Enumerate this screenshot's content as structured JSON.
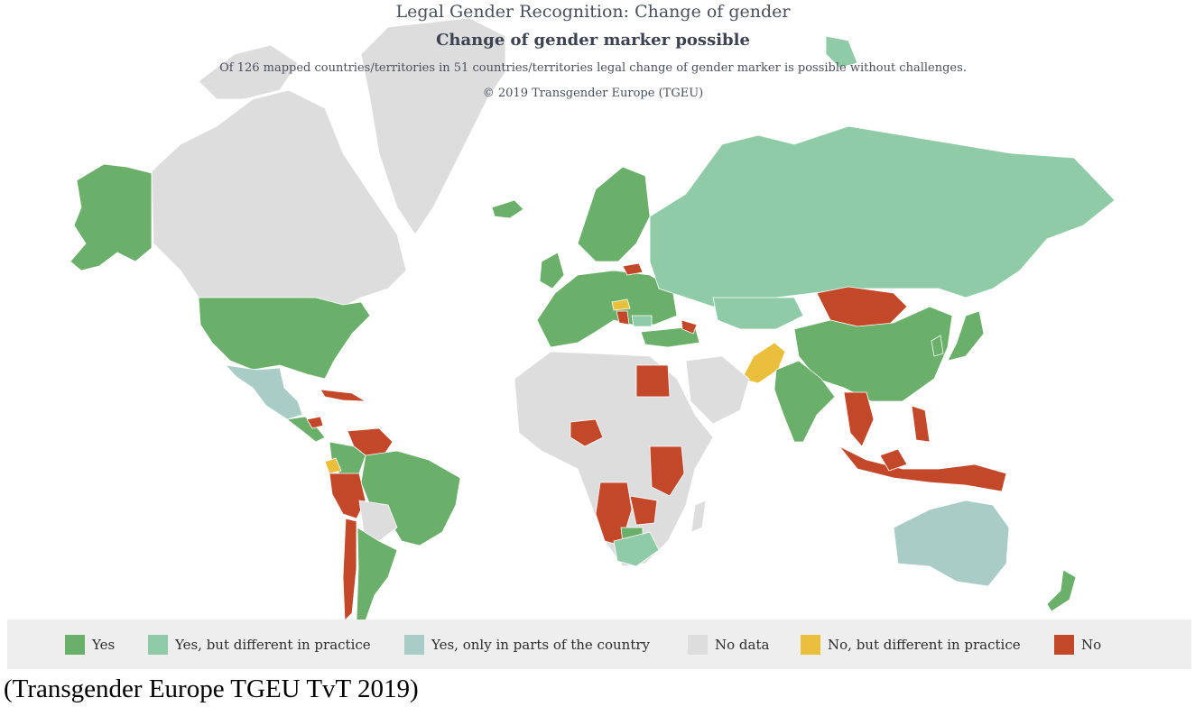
{
  "map": {
    "title": "Legal Gender Recognition: Change of gender",
    "subtitle": "Change of gender marker possible",
    "description": "Of 126 mapped countries/territories in 51 countries/territories legal change of gender marker is possible without challenges.",
    "copyright": "© 2019 Transgender Europe (TGEU)"
  },
  "colors": {
    "yes": "#6aaf6a",
    "yes_practice": "#8ecba6",
    "yes_parts": "#a9cdc6",
    "no_data": "#dddddd",
    "no_practice": "#eabf3c",
    "no": "#c3482a"
  },
  "legend": [
    {
      "label": "Yes",
      "color": "#6aaf6a"
    },
    {
      "label": "Yes, but different in practice",
      "color": "#8ecba6"
    },
    {
      "label": "Yes, only in parts of the country",
      "color": "#a9cdc6"
    },
    {
      "label": "No data",
      "color": "#dddddd"
    },
    {
      "label": "No, but different in practice",
      "color": "#eabf3c"
    },
    {
      "label": "No",
      "color": "#c3482a"
    }
  ],
  "caption": "(Transgender Europe TGEU TvT 2019)"
}
